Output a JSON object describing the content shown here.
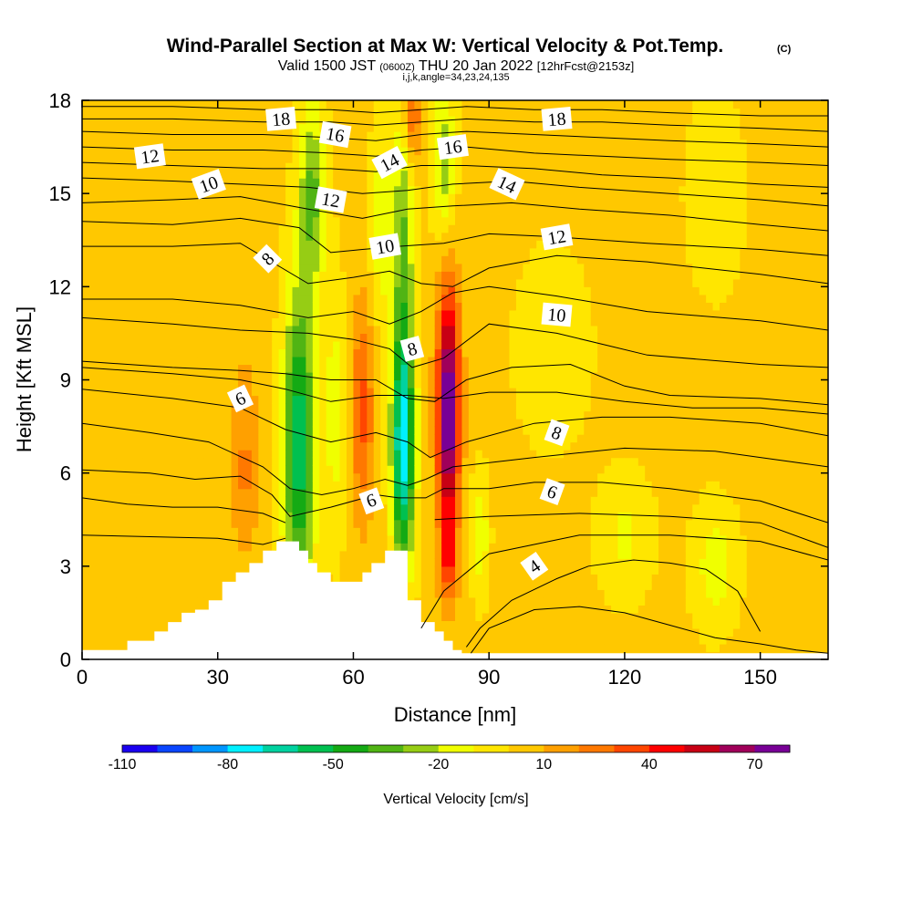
{
  "chart_data": {
    "type": "heatmap",
    "title": "Wind-Parallel Section at Max W: Vertical Velocity & Pot.Temp.",
    "title_mark": "(C)",
    "subtitle_parts": [
      "Valid 1500 JST",
      "(0600Z)",
      "THU 20 Jan 2022",
      "[12hrFcst@2153z]"
    ],
    "info_line": "i,j,k,angle=34,23,24,135",
    "xlabel": "Distance [nm]",
    "ylabel": "Height [Kft MSL]",
    "xlim": [
      0,
      165
    ],
    "ylim": [
      0,
      18
    ],
    "xticks": [
      "0",
      "30",
      "60",
      "90",
      "120",
      "150"
    ],
    "yticks": [
      "0",
      "3",
      "6",
      "9",
      "12",
      "15",
      "18"
    ],
    "colorbar": {
      "label": "Vertical Velocity [cm/s]",
      "tick_labels": [
        "-110",
        "-80",
        "-50",
        "-20",
        "10",
        "40",
        "70"
      ],
      "levels": [
        -110,
        -100,
        -90,
        -80,
        -70,
        -60,
        -50,
        -40,
        -30,
        -20,
        -10,
        0,
        10,
        20,
        30,
        40,
        50,
        60,
        70,
        80
      ],
      "colors": [
        "#1a00f0",
        "#0a46ff",
        "#0096ff",
        "#00f0ff",
        "#00d2a0",
        "#00c050",
        "#14aa14",
        "#50b414",
        "#96cd14",
        "#f0ff00",
        "#ffe600",
        "#ffc800",
        "#ffa000",
        "#ff7800",
        "#ff4600",
        "#ff0000",
        "#c80014",
        "#a0005a",
        "#780096"
      ]
    },
    "background_fill": "#ffb400",
    "terrain_color": "#ffffff",
    "w_features": [
      {
        "x": 12,
        "y": 10,
        "sx": 5,
        "sy": 4,
        "w": 2
      },
      {
        "x": 25,
        "y": 6,
        "sx": 5,
        "sy": 2.5,
        "w": 5
      },
      {
        "x": 36,
        "y": 6,
        "sx": 3.5,
        "sy": 2.5,
        "w": 18
      },
      {
        "x": 36,
        "y": 10,
        "sx": 4,
        "sy": 3,
        "w": 5
      },
      {
        "x": 48,
        "y": 7,
        "sx": 3.5,
        "sy": 5,
        "w": -60
      },
      {
        "x": 51,
        "y": 15,
        "sx": 3,
        "sy": 3,
        "w": -35
      },
      {
        "x": 56,
        "y": 8,
        "sx": 2.5,
        "sy": 4,
        "w": -18
      },
      {
        "x": 62,
        "y": 8,
        "sx": 2.5,
        "sy": 3.5,
        "w": 30
      },
      {
        "x": 66,
        "y": 14,
        "sx": 2.5,
        "sy": 3,
        "w": -20
      },
      {
        "x": 71,
        "y": 7,
        "sx": 2.5,
        "sy": 4,
        "w": -80
      },
      {
        "x": 71,
        "y": 14,
        "sx": 2.5,
        "sy": 4,
        "w": -30
      },
      {
        "x": 73,
        "y": 17.5,
        "sx": 2,
        "sy": 1.5,
        "w": 30
      },
      {
        "x": 81,
        "y": 8,
        "sx": 2.5,
        "sy": 4,
        "w": 80
      },
      {
        "x": 81,
        "y": 3,
        "sx": 2,
        "sy": 1.2,
        "w": 25
      },
      {
        "x": 80,
        "y": 16,
        "sx": 2.5,
        "sy": 2.5,
        "w": -30
      },
      {
        "x": 88,
        "y": 4,
        "sx": 2,
        "sy": 2,
        "w": -20
      },
      {
        "x": 104,
        "y": 10,
        "sx": 8,
        "sy": 3,
        "w": -12
      },
      {
        "x": 120,
        "y": 4,
        "sx": 6,
        "sy": 2,
        "w": -15
      },
      {
        "x": 140,
        "y": 3,
        "sx": 5,
        "sy": 2,
        "w": -18
      },
      {
        "x": 140,
        "y": 15,
        "sx": 6,
        "sy": 3,
        "w": -13
      }
    ],
    "terrain": {
      "x": [
        0,
        10,
        10,
        16,
        16,
        19,
        19,
        22,
        22,
        25,
        25,
        28,
        28,
        31,
        31,
        34,
        34,
        37,
        37,
        40,
        40,
        43,
        43,
        48,
        48,
        50,
        50,
        52,
        52,
        55,
        55,
        62,
        62,
        64,
        64,
        67,
        67,
        72,
        72,
        75,
        75,
        78,
        78,
        80,
        80,
        82,
        82,
        84,
        84,
        165
      ],
      "y": [
        0.3,
        0.3,
        0.6,
        0.6,
        0.9,
        0.9,
        1.2,
        1.2,
        1.5,
        1.5,
        1.6,
        1.6,
        1.9,
        1.9,
        2.5,
        2.5,
        2.8,
        2.8,
        3.1,
        3.1,
        3.5,
        3.5,
        3.8,
        3.8,
        3.5,
        3.5,
        3.1,
        3.1,
        2.8,
        2.8,
        2.5,
        2.5,
        2.8,
        2.8,
        3.1,
        3.1,
        3.5,
        3.5,
        1.9,
        1.9,
        1.2,
        1.2,
        0.9,
        0.9,
        0.6,
        0.6,
        0.3,
        0.3,
        0.2,
        0.2
      ]
    },
    "theta_contours": [
      {
        "level": 4,
        "x": [
          85,
          88,
          95,
          105,
          112,
          122,
          130,
          138,
          145,
          150
        ],
        "y": [
          0.4,
          1.0,
          1.9,
          2.6,
          3.0,
          3.2,
          3.1,
          2.9,
          2.2,
          0.9
        ]
      },
      {
        "level": 4,
        "x": [
          86,
          90,
          100,
          110,
          120,
          130,
          140,
          150,
          158,
          165
        ],
        "y": [
          0.2,
          1.0,
          1.6,
          1.7,
          1.5,
          1.1,
          0.7,
          0.5,
          0.3,
          0.2
        ]
      },
      {
        "level": 5,
        "x": [
          0,
          30,
          40,
          45
        ],
        "y": [
          4.0,
          3.9,
          3.7,
          3.9
        ]
      },
      {
        "level": 5,
        "x": [
          75,
          80,
          90,
          110,
          130,
          150,
          165
        ],
        "y": [
          1.0,
          2.2,
          3.4,
          4.0,
          4.0,
          3.8,
          3.2
        ]
      },
      {
        "level": 5.5,
        "x": [
          0,
          10,
          20,
          30,
          40,
          45
        ],
        "y": [
          5.2,
          5.0,
          4.9,
          4.9,
          4.7,
          4.4
        ]
      },
      {
        "level": 5.5,
        "x": [
          78,
          90,
          110,
          130,
          150,
          165
        ],
        "y": [
          4.5,
          4.6,
          4.7,
          4.6,
          4.4,
          3.6
        ]
      },
      {
        "level": 6,
        "x": [
          0,
          15,
          25,
          35,
          42,
          46,
          55,
          65,
          70,
          76,
          80,
          90,
          100,
          115,
          130,
          150,
          165
        ],
        "y": [
          6.1,
          6.0,
          5.8,
          5.9,
          5.3,
          4.6,
          4.9,
          5.3,
          5.2,
          5.2,
          5.5,
          5.5,
          5.7,
          5.7,
          5.5,
          5.1,
          4.4
        ]
      },
      {
        "level": 7,
        "x": [
          0,
          15,
          28,
          40,
          46,
          53,
          60,
          67,
          72,
          76,
          82,
          100,
          120,
          140,
          165
        ],
        "y": [
          7.6,
          7.3,
          7.0,
          6.2,
          5.5,
          5.3,
          5.5,
          5.8,
          5.6,
          5.8,
          6.2,
          6.5,
          6.8,
          6.7,
          6.2
        ]
      },
      {
        "level": 7.5,
        "x": [
          0,
          20,
          35,
          45,
          55,
          65,
          72,
          77,
          85,
          100,
          115,
          130,
          150,
          165
        ],
        "y": [
          8.7,
          8.4,
          8.1,
          7.4,
          7.0,
          7.3,
          7.0,
          6.5,
          7.0,
          7.6,
          7.8,
          7.8,
          7.6,
          7.2
        ]
      },
      {
        "level": 8,
        "x": [
          0,
          20,
          35,
          45,
          55,
          65,
          72,
          80,
          90,
          105,
          120,
          135,
          150,
          165
        ],
        "y": [
          9.4,
          9.2,
          9.0,
          8.7,
          8.3,
          8.5,
          8.5,
          8.4,
          8.6,
          8.6,
          8.3,
          8.1,
          8.1,
          7.9
        ]
      },
      {
        "level": 9,
        "x": [
          0,
          20,
          35,
          45,
          55,
          65,
          72,
          78,
          85,
          95,
          108,
          120,
          130,
          150,
          165
        ],
        "y": [
          9.6,
          9.4,
          9.3,
          9.2,
          9.0,
          9.0,
          8.4,
          8.3,
          9.0,
          9.4,
          9.5,
          8.8,
          8.5,
          8.4,
          8.2
        ]
      },
      {
        "level": 9.5,
        "x": [
          0,
          20,
          35,
          50,
          60,
          68,
          73,
          80,
          90,
          105,
          125,
          150,
          165
        ],
        "y": [
          11.0,
          10.8,
          10.6,
          10.5,
          10.3,
          10.0,
          9.4,
          9.7,
          10.8,
          10.5,
          9.8,
          9.5,
          9.4
        ]
      },
      {
        "level": 10,
        "x": [
          0,
          20,
          35,
          50,
          60,
          68,
          75,
          82,
          90,
          105,
          125,
          150,
          165
        ],
        "y": [
          11.6,
          11.6,
          11.4,
          11.0,
          11.2,
          10.8,
          11.2,
          11.8,
          12.0,
          11.7,
          11.2,
          10.9,
          10.6
        ]
      },
      {
        "level": 10.5,
        "x": [
          0,
          20,
          35,
          50,
          60,
          68,
          75,
          82,
          90,
          105,
          125,
          150,
          165
        ],
        "y": [
          13.3,
          13.3,
          13.4,
          12.1,
          12.3,
          12.5,
          12.1,
          12.0,
          12.6,
          13.0,
          12.8,
          12.4,
          12.1
        ]
      },
      {
        "level": 11,
        "x": [
          0,
          20,
          35,
          48,
          55,
          62,
          70,
          80,
          90,
          105,
          125,
          150,
          165
        ],
        "y": [
          14.1,
          14.0,
          14.2,
          13.9,
          13.1,
          13.2,
          13.3,
          13.4,
          13.7,
          13.6,
          13.4,
          13.2,
          13.0
        ]
      },
      {
        "level": 11.5,
        "x": [
          0,
          20,
          35,
          50,
          62,
          72,
          82,
          95,
          110,
          130,
          150,
          165
        ],
        "y": [
          14.7,
          14.8,
          14.9,
          14.5,
          14.2,
          14.5,
          14.6,
          14.7,
          14.5,
          14.3,
          14.0,
          13.8
        ]
      },
      {
        "level": 12,
        "x": [
          0,
          20,
          35,
          50,
          62,
          72,
          82,
          95,
          110,
          130,
          150,
          165
        ],
        "y": [
          15.5,
          15.4,
          15.3,
          15.2,
          15.0,
          15.1,
          15.3,
          15.4,
          15.2,
          15.0,
          14.8,
          14.6
        ]
      },
      {
        "level": 13,
        "x": [
          0,
          20,
          40,
          55,
          65,
          75,
          85,
          100,
          115,
          130,
          150,
          165
        ],
        "y": [
          16.0,
          15.9,
          15.8,
          15.8,
          15.7,
          15.9,
          15.9,
          15.8,
          15.6,
          15.5,
          15.3,
          15.2
        ]
      },
      {
        "level": 14,
        "x": [
          0,
          20,
          40,
          55,
          65,
          75,
          85,
          100,
          115,
          130,
          150,
          165
        ],
        "y": [
          16.5,
          16.4,
          16.4,
          16.3,
          16.2,
          16.4,
          16.5,
          16.3,
          16.2,
          16.1,
          16.0,
          15.9
        ]
      },
      {
        "level": 15,
        "x": [
          0,
          20,
          40,
          55,
          65,
          75,
          85,
          100,
          115,
          130,
          150,
          165
        ],
        "y": [
          17.0,
          16.9,
          16.9,
          16.8,
          16.7,
          16.9,
          17.0,
          16.9,
          16.8,
          16.7,
          16.6,
          16.5
        ]
      },
      {
        "level": 16,
        "x": [
          0,
          20,
          40,
          55,
          65,
          75,
          85,
          100,
          115,
          130,
          150,
          165
        ],
        "y": [
          17.4,
          17.4,
          17.3,
          17.3,
          17.2,
          17.3,
          17.4,
          17.3,
          17.3,
          17.2,
          17.1,
          17.0
        ]
      },
      {
        "level": 17,
        "x": [
          0,
          20,
          40,
          55,
          65,
          75,
          85,
          100,
          115,
          130,
          150,
          165
        ],
        "y": [
          17.8,
          17.8,
          17.7,
          17.7,
          17.6,
          17.7,
          17.8,
          17.7,
          17.7,
          17.6,
          17.5,
          17.5
        ]
      }
    ],
    "contour_labels": [
      {
        "text": "18",
        "x": 44,
        "y": 17.4,
        "angle": -5
      },
      {
        "text": "16",
        "x": 56,
        "y": 16.9,
        "angle": 10
      },
      {
        "text": "14",
        "x": 68,
        "y": 16.0,
        "angle": -28
      },
      {
        "text": "16",
        "x": 82,
        "y": 16.5,
        "angle": -8
      },
      {
        "text": "18",
        "x": 105,
        "y": 17.4,
        "angle": -5
      },
      {
        "text": "12",
        "x": 15,
        "y": 16.2,
        "angle": -8
      },
      {
        "text": "10",
        "x": 28,
        "y": 15.3,
        "angle": -20
      },
      {
        "text": "12",
        "x": 55,
        "y": 14.8,
        "angle": 10
      },
      {
        "text": "14",
        "x": 94,
        "y": 15.3,
        "angle": 25
      },
      {
        "text": "10",
        "x": 67,
        "y": 13.3,
        "angle": -10
      },
      {
        "text": "12",
        "x": 105,
        "y": 13.6,
        "angle": -10
      },
      {
        "text": "8",
        "x": 41,
        "y": 12.9,
        "angle": -45
      },
      {
        "text": "10",
        "x": 105,
        "y": 11.1,
        "angle": 5
      },
      {
        "text": "8",
        "x": 73,
        "y": 10.0,
        "angle": -15
      },
      {
        "text": "6",
        "x": 35,
        "y": 8.4,
        "angle": -25
      },
      {
        "text": "8",
        "x": 105,
        "y": 7.3,
        "angle": 20
      },
      {
        "text": "9",
        "x": 64,
        "y": 5.1,
        "angle": 160
      },
      {
        "text": "6",
        "x": 104,
        "y": 5.4,
        "angle": 20
      },
      {
        "text": "4",
        "x": 100,
        "y": 3.0,
        "angle": -35
      }
    ]
  }
}
